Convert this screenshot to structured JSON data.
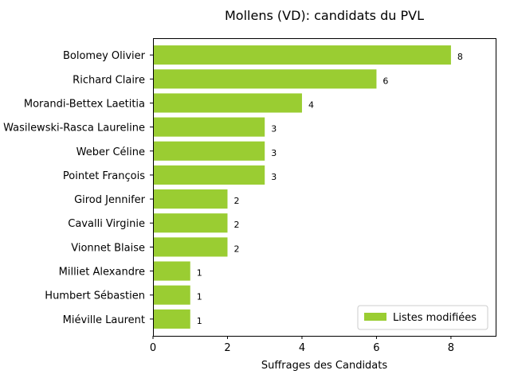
{
  "chart_data": {
    "type": "bar",
    "orientation": "horizontal",
    "title": "Mollens (VD): candidats du PVL",
    "xlabel": "Suffrages des Candidats",
    "ylabel": "",
    "categories": [
      "Bolomey Olivier",
      "Richard Claire",
      "Morandi-Bettex Laetitia",
      "Wasilewski-Rasca Laureline",
      "Weber Céline",
      "Pointet François",
      "Girod Jennifer",
      "Cavalli Virginie",
      "Vionnet Blaise",
      "Milliet Alexandre",
      "Humbert Sébastien",
      "Miéville Laurent"
    ],
    "series": [
      {
        "name": "Listes modifiées",
        "color": "#9acd32",
        "values": [
          8,
          6,
          4,
          3,
          3,
          3,
          2,
          2,
          2,
          1,
          1,
          1
        ]
      }
    ],
    "xlim": [
      0,
      9.2
    ],
    "xticks": [
      "0",
      "2",
      "4",
      "6",
      "8"
    ],
    "grid": false,
    "legend_position": "lower right"
  }
}
